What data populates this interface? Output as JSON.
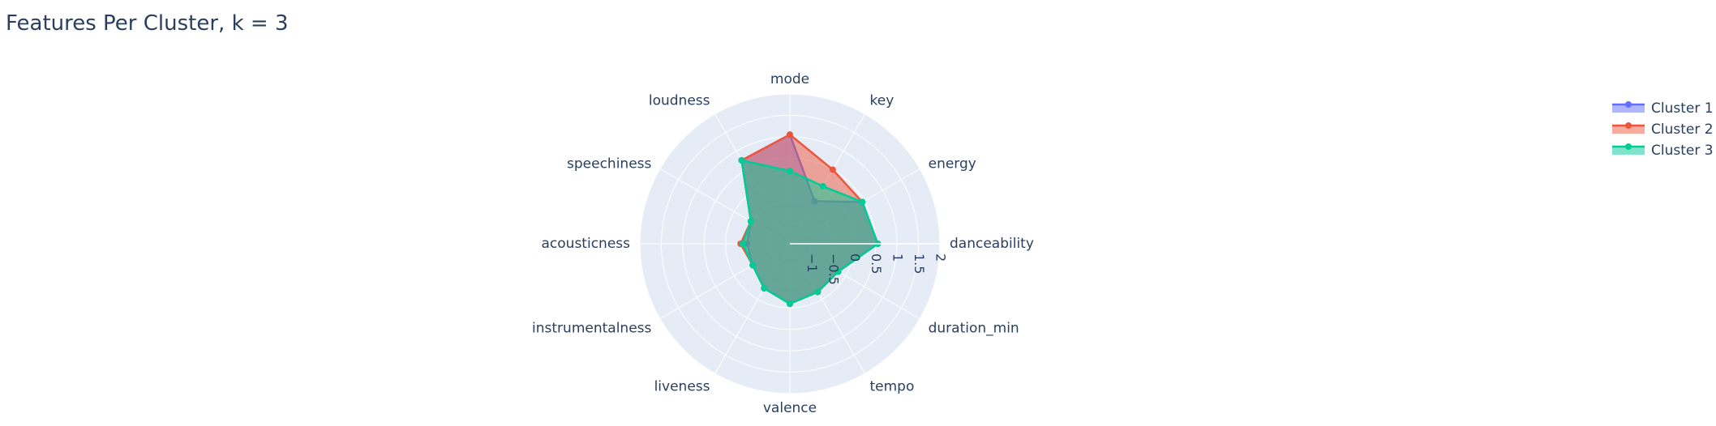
{
  "colors": {
    "cluster_1": "#636efa",
    "cluster_2": "#ef553b",
    "cluster_3": "#00cc96",
    "polar_background": "#e5ecf6",
    "grid": "#ffffff",
    "text": "#2a3f5f"
  },
  "chart_data": {
    "type": "radar",
    "title": "Features Per Cluster, k = 3",
    "categories": [
      "danceability",
      "energy",
      "key",
      "mode",
      "loudness",
      "speechiness",
      "acousticness",
      "instrumentalness",
      "liveness",
      "valence",
      "tempo",
      "duration_min"
    ],
    "radial_range": [
      -1.5,
      2
    ],
    "radial_ticks": [
      "−1",
      "−0.5",
      "0",
      "0.5",
      "1",
      "1.5",
      "2"
    ],
    "radial_tick_values": [
      -1,
      -0.5,
      0,
      0.5,
      1,
      1.5,
      2
    ],
    "grid": true,
    "legend_position": "top-right",
    "series": [
      {
        "name": "Cluster 1",
        "values": [
          0.55,
          0.45,
          -0.35,
          1.05,
          0.75,
          -0.45,
          -0.5,
          -0.5,
          -0.3,
          -0.1,
          -0.2,
          -0.2
        ],
        "color": "#636efa"
      },
      {
        "name": "Cluster 2",
        "values": [
          0.55,
          0.45,
          0.5,
          1.05,
          0.75,
          -0.45,
          -0.35,
          -0.5,
          -0.3,
          -0.1,
          -0.2,
          -0.2
        ],
        "color": "#ef553b"
      },
      {
        "name": "Cluster 3",
        "values": [
          0.55,
          0.45,
          0.05,
          0.2,
          0.75,
          -0.45,
          -0.4,
          -0.5,
          -0.3,
          -0.1,
          -0.2,
          -0.2
        ],
        "color": "#00cc96"
      }
    ]
  }
}
